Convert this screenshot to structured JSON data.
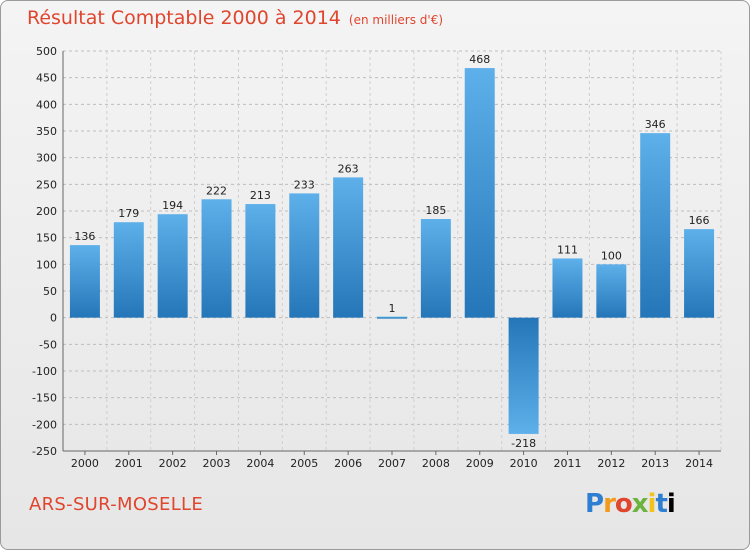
{
  "chart_data": {
    "type": "bar",
    "title": "Résultat Comptable 2000 à 2014",
    "subtitle": "(en milliers d'€)",
    "categories": [
      "2000",
      "2001",
      "2002",
      "2003",
      "2004",
      "2005",
      "2006",
      "2007",
      "2008",
      "2009",
      "2010",
      "2011",
      "2012",
      "2013",
      "2014"
    ],
    "values": [
      136,
      179,
      194,
      222,
      213,
      233,
      263,
      1,
      185,
      468,
      -218,
      111,
      100,
      346,
      166
    ],
    "ylim": [
      -250,
      500
    ],
    "yticks": [
      500,
      450,
      400,
      350,
      300,
      250,
      200,
      150,
      100,
      50,
      0,
      -50,
      -100,
      -150,
      -200,
      -250
    ],
    "xlabel": "",
    "ylabel": "",
    "grid": true
  },
  "footer": {
    "town": "ARS-SUR-MOSELLE",
    "brand": "Proxiti"
  },
  "colors": {
    "accent": "#e0452e",
    "bar_light": "#5eb0ea",
    "bar_dark": "#2476b8"
  }
}
